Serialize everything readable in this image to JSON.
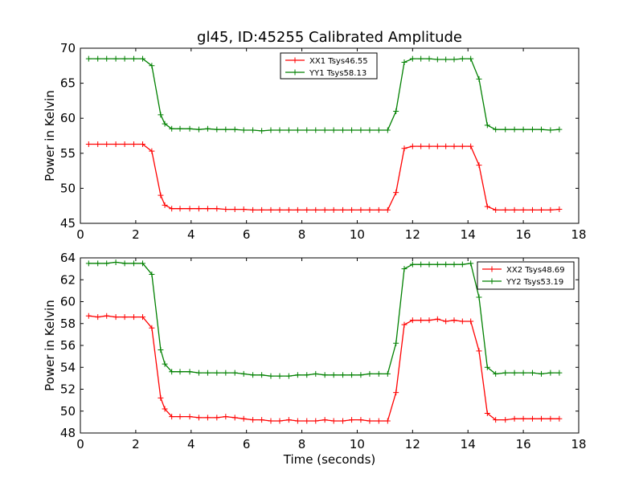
{
  "figure": {
    "title": "gl45, ID:45255 Calibrated Amplitude"
  },
  "chart_data": [
    {
      "type": "line",
      "title": "gl45, ID:45255 Calibrated Amplitude",
      "xlabel": "",
      "ylabel": "Power in Kelvin",
      "xlim": [
        0,
        18
      ],
      "ylim": [
        45,
        70
      ],
      "xticks": [
        0,
        2,
        4,
        6,
        8,
        10,
        12,
        14,
        16,
        18
      ],
      "yticks": [
        45,
        50,
        55,
        60,
        65,
        70
      ],
      "grid": false,
      "legend_position": "top-center",
      "x": [
        0.3,
        0.63,
        0.95,
        1.28,
        1.6,
        1.93,
        2.25,
        2.58,
        2.9,
        3.05,
        3.3,
        3.6,
        3.95,
        4.28,
        4.6,
        4.93,
        5.25,
        5.58,
        5.9,
        6.23,
        6.55,
        6.88,
        7.2,
        7.53,
        7.85,
        8.18,
        8.5,
        8.83,
        9.15,
        9.48,
        9.8,
        10.13,
        10.45,
        10.78,
        11.1,
        11.4,
        11.7,
        12.0,
        12.3,
        12.6,
        12.9,
        13.2,
        13.5,
        13.8,
        14.1,
        14.4,
        14.7,
        15.0,
        15.35,
        15.68,
        16.0,
        16.33,
        16.65,
        16.98,
        17.3
      ],
      "series": [
        {
          "name": "XX1 Tsys46.55",
          "color": "#ff0000",
          "values": [
            56.3,
            56.3,
            56.3,
            56.3,
            56.3,
            56.3,
            56.3,
            55.3,
            49.0,
            47.6,
            47.1,
            47.1,
            47.1,
            47.1,
            47.1,
            47.1,
            47.0,
            47.0,
            47.0,
            46.9,
            46.9,
            46.9,
            46.9,
            46.9,
            46.9,
            46.9,
            46.9,
            46.9,
            46.9,
            46.9,
            46.9,
            46.9,
            46.9,
            46.9,
            46.9,
            49.4,
            55.7,
            56.0,
            56.0,
            56.0,
            56.0,
            56.0,
            56.0,
            56.0,
            56.0,
            53.3,
            47.4,
            46.9,
            46.9,
            46.9,
            46.9,
            46.9,
            46.9,
            46.9,
            47.0
          ]
        },
        {
          "name": "YY1 Tsys58.13",
          "color": "#008000",
          "values": [
            68.5,
            68.5,
            68.5,
            68.5,
            68.5,
            68.5,
            68.5,
            67.5,
            60.5,
            59.2,
            58.5,
            58.5,
            58.5,
            58.4,
            58.5,
            58.4,
            58.4,
            58.4,
            58.3,
            58.3,
            58.2,
            58.3,
            58.3,
            58.3,
            58.3,
            58.3,
            58.3,
            58.3,
            58.3,
            58.3,
            58.3,
            58.3,
            58.3,
            58.3,
            58.3,
            61.0,
            68.0,
            68.5,
            68.5,
            68.5,
            68.4,
            68.4,
            68.4,
            68.5,
            68.5,
            65.6,
            59.0,
            58.4,
            58.4,
            58.4,
            58.4,
            58.4,
            58.4,
            58.3,
            58.4
          ]
        }
      ]
    },
    {
      "type": "line",
      "title": "",
      "xlabel": "Time (seconds)",
      "ylabel": "Power in Kelvin",
      "xlim": [
        0,
        18
      ],
      "ylim": [
        48,
        64
      ],
      "xticks": [
        0,
        2,
        4,
        6,
        8,
        10,
        12,
        14,
        16,
        18
      ],
      "yticks": [
        48,
        50,
        52,
        54,
        56,
        58,
        60,
        62,
        64
      ],
      "grid": false,
      "legend_position": "top-right",
      "x": [
        0.3,
        0.63,
        0.95,
        1.28,
        1.6,
        1.93,
        2.25,
        2.58,
        2.9,
        3.05,
        3.3,
        3.6,
        3.95,
        4.28,
        4.6,
        4.93,
        5.25,
        5.58,
        5.9,
        6.23,
        6.55,
        6.88,
        7.2,
        7.53,
        7.85,
        8.18,
        8.5,
        8.83,
        9.15,
        9.48,
        9.8,
        10.13,
        10.45,
        10.78,
        11.1,
        11.4,
        11.7,
        12.0,
        12.3,
        12.6,
        12.9,
        13.2,
        13.5,
        13.8,
        14.1,
        14.4,
        14.7,
        15.0,
        15.35,
        15.68,
        16.0,
        16.33,
        16.65,
        16.98,
        17.3
      ],
      "series": [
        {
          "name": "XX2 Tsys48.69",
          "color": "#ff0000",
          "values": [
            58.7,
            58.6,
            58.7,
            58.6,
            58.6,
            58.6,
            58.6,
            57.6,
            51.2,
            50.2,
            49.5,
            49.5,
            49.5,
            49.4,
            49.4,
            49.4,
            49.5,
            49.4,
            49.3,
            49.2,
            49.2,
            49.1,
            49.1,
            49.2,
            49.1,
            49.1,
            49.1,
            49.2,
            49.1,
            49.1,
            49.2,
            49.2,
            49.1,
            49.1,
            49.1,
            51.7,
            57.9,
            58.3,
            58.3,
            58.3,
            58.4,
            58.2,
            58.3,
            58.2,
            58.2,
            55.5,
            49.8,
            49.2,
            49.2,
            49.3,
            49.3,
            49.3,
            49.3,
            49.3,
            49.3
          ]
        },
        {
          "name": "YY2 Tsys53.19",
          "color": "#008000",
          "values": [
            63.5,
            63.5,
            63.5,
            63.6,
            63.5,
            63.5,
            63.5,
            62.5,
            55.6,
            54.3,
            53.6,
            53.6,
            53.6,
            53.5,
            53.5,
            53.5,
            53.5,
            53.5,
            53.4,
            53.3,
            53.3,
            53.2,
            53.2,
            53.2,
            53.3,
            53.3,
            53.4,
            53.3,
            53.3,
            53.3,
            53.3,
            53.3,
            53.4,
            53.4,
            53.4,
            56.2,
            63.0,
            63.4,
            63.4,
            63.4,
            63.4,
            63.4,
            63.4,
            63.4,
            63.5,
            60.4,
            54.0,
            53.4,
            53.5,
            53.5,
            53.5,
            53.5,
            53.4,
            53.5,
            53.5
          ]
        }
      ]
    }
  ]
}
